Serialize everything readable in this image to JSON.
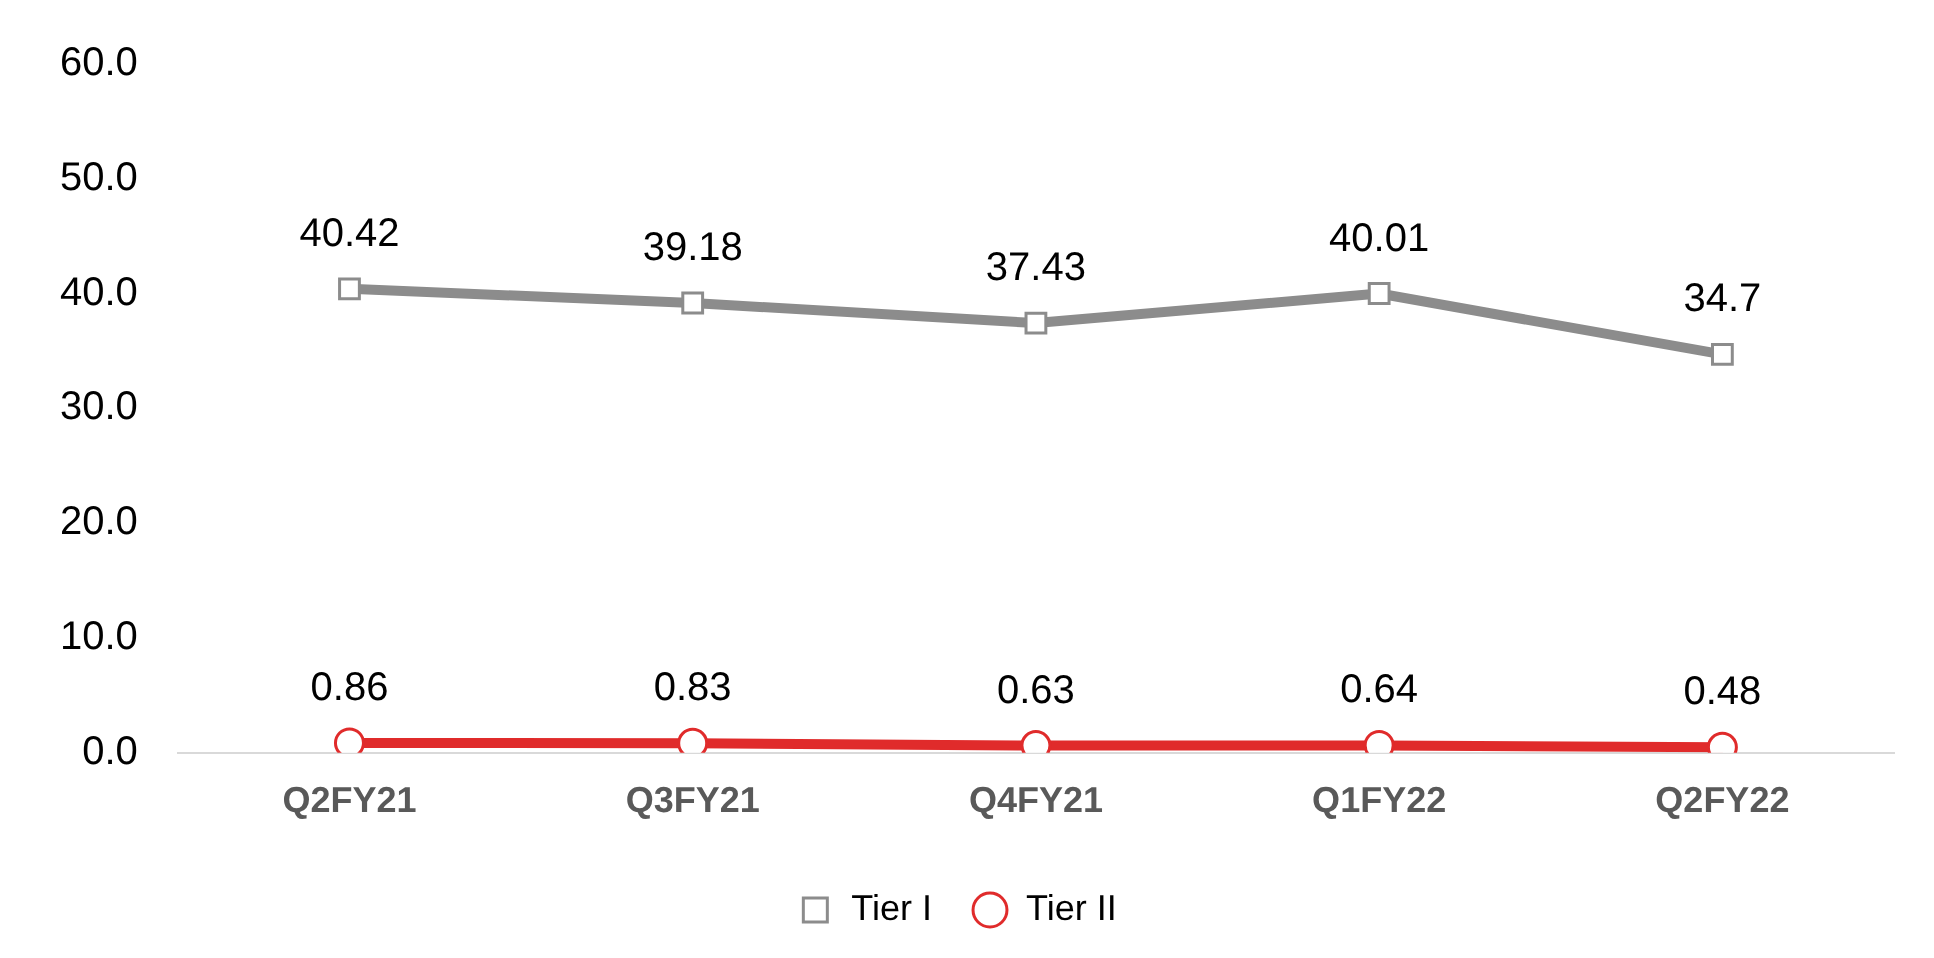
{
  "chart_data": {
    "type": "line",
    "categories": [
      "Q2FY21",
      "Q3FY21",
      "Q4FY21",
      "Q1FY22",
      "Q2FY22"
    ],
    "series": [
      {
        "name": "Tier I",
        "color": "#8c8c8c",
        "marker": "square",
        "values": [
          40.42,
          39.18,
          37.43,
          40.01,
          34.7
        ]
      },
      {
        "name": "Tier II",
        "color": "#e02b2b",
        "marker": "circle",
        "values": [
          0.86,
          0.83,
          0.63,
          0.64,
          0.48
        ]
      }
    ],
    "ylim": [
      0,
      60
    ],
    "yticks": [
      {
        "value": 0,
        "label": "0.0"
      },
      {
        "value": 10,
        "label": "10.0"
      },
      {
        "value": 20,
        "label": "20.0"
      },
      {
        "value": 30,
        "label": "30.0"
      },
      {
        "value": 40,
        "label": "40.0"
      },
      {
        "value": 50,
        "label": "50.0"
      },
      {
        "value": 60,
        "label": "60.0"
      }
    ],
    "grid": false,
    "legend": "bottom",
    "data_labels": true,
    "line_style": "solid"
  }
}
